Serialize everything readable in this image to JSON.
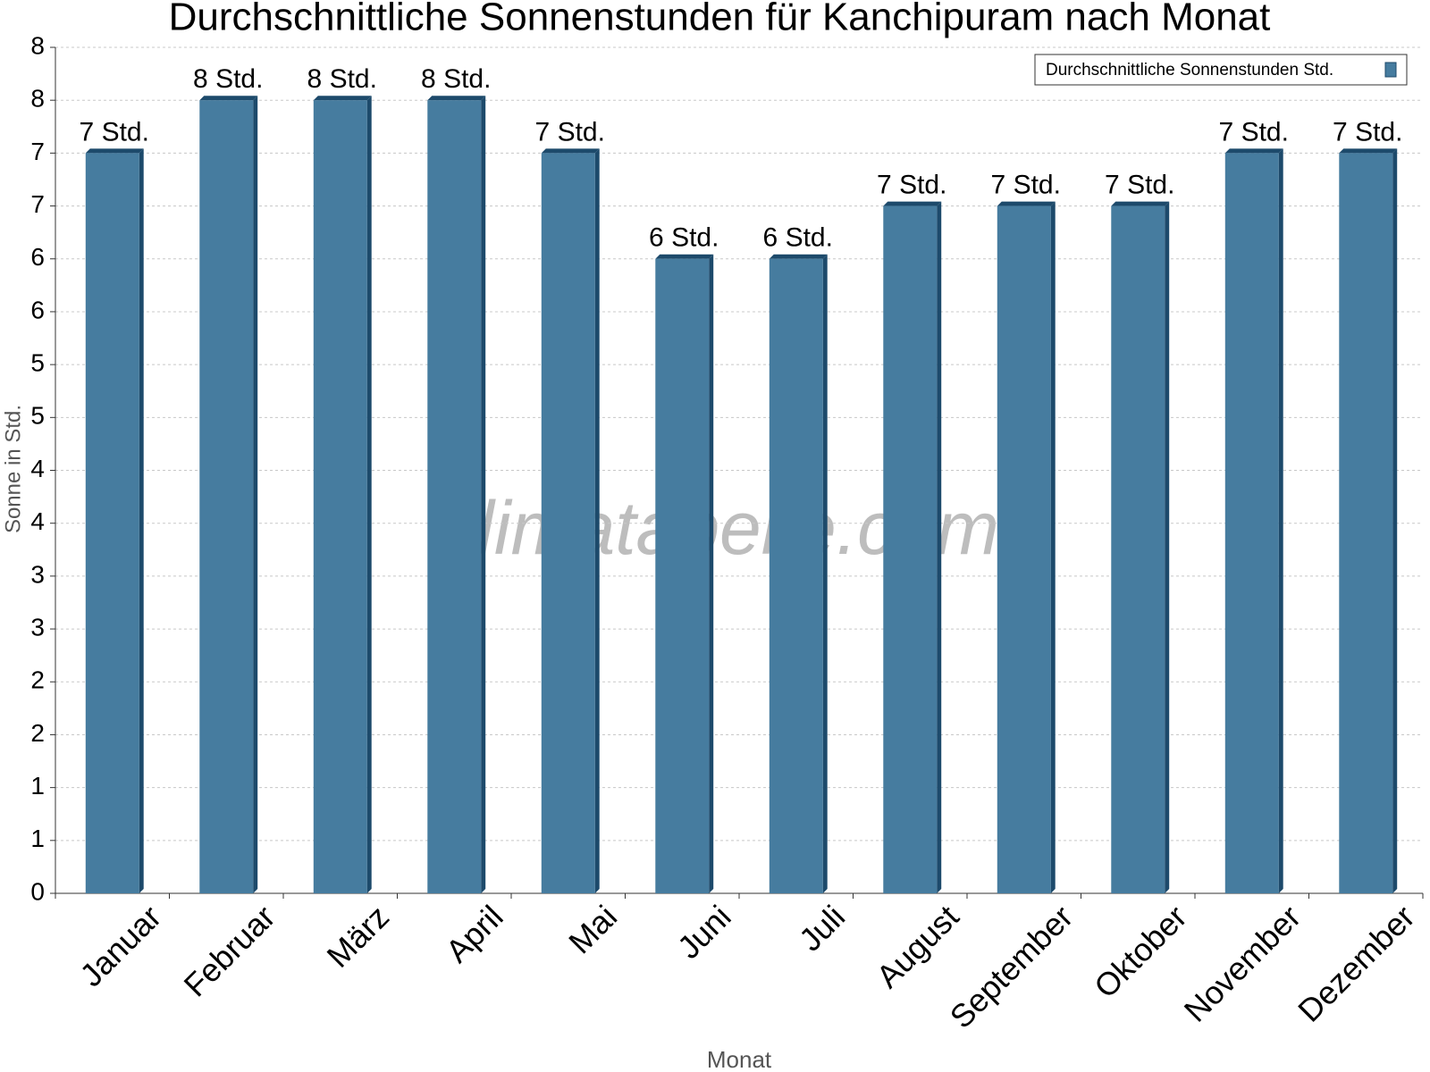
{
  "chart_data": {
    "type": "bar",
    "title": "Durchschnittliche Sonnenstunden für Kanchipuram nach Monat",
    "watermark": "klimatabelle.com",
    "x_label": "Monat",
    "y_label": "Sonne in Std.",
    "categories": [
      "Januar",
      "Februar",
      "März",
      "April",
      "Mai",
      "Juni",
      "Juli",
      "August",
      "September",
      "Oktober",
      "November",
      "Dezember"
    ],
    "series": [
      {
        "name": "Durchschnittliche Sonnenstunden Std.",
        "color": "#467c9f",
        "values": [
          7,
          7.5,
          7.5,
          7.5,
          7,
          6,
          6,
          6.5,
          6.5,
          6.5,
          7,
          7
        ],
        "value_labels": [
          "7 Std.",
          "8 Std.",
          "8 Std.",
          "8 Std.",
          "7 Std.",
          "6 Std.",
          "6 Std.",
          "7 Std.",
          "7 Std.",
          "7 Std.",
          "7 Std.",
          "7 Std."
        ]
      }
    ],
    "ylim": [
      0,
      8
    ],
    "yticks": [
      0,
      {
        "value": 0.5,
        "label": "1"
      },
      1,
      {
        "value": 1.5,
        "label": "2"
      },
      2,
      {
        "value": 2.5,
        "label": "3"
      },
      3,
      {
        "value": 3.5,
        "label": "4"
      },
      4,
      {
        "value": 4.5,
        "label": "5"
      },
      5,
      {
        "value": 5.5,
        "label": "6"
      },
      6,
      {
        "value": 6.5,
        "label": "7"
      },
      7,
      {
        "value": 7.5,
        "label": "8"
      },
      8
    ],
    "grid": true,
    "legend_position": "top-right"
  }
}
